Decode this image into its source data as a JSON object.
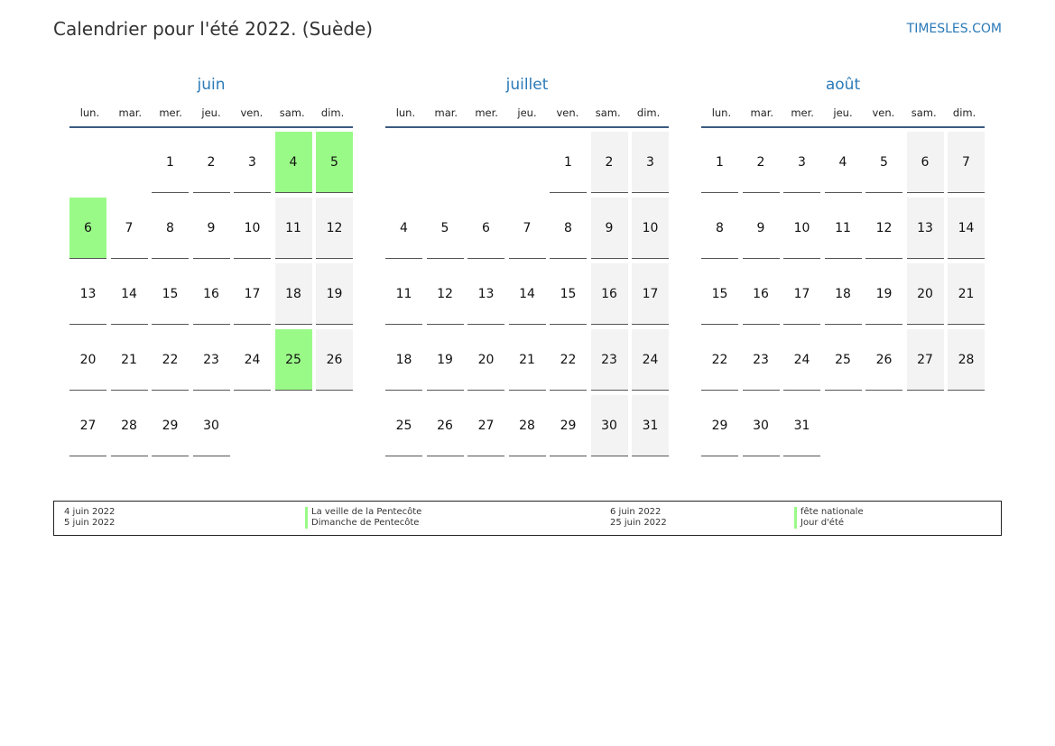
{
  "title": "Calendrier pour l'été 2022. (Suède)",
  "brand": "TIMESLES.COM",
  "weekdays": [
    "lun.",
    "mar.",
    "mer.",
    "jeu.",
    "ven.",
    "sam.",
    "dim."
  ],
  "colors": {
    "accent": "#2a7ab8",
    "holiday": "#9afa88",
    "weekend": "#f3f3f3"
  },
  "months": [
    {
      "name": "juin",
      "weeks": [
        [
          null,
          null,
          1,
          2,
          3,
          4,
          5
        ],
        [
          6,
          7,
          8,
          9,
          10,
          11,
          12
        ],
        [
          13,
          14,
          15,
          16,
          17,
          18,
          19
        ],
        [
          20,
          21,
          22,
          23,
          24,
          25,
          26
        ],
        [
          27,
          28,
          29,
          30,
          null,
          null,
          null
        ]
      ],
      "holidays": [
        4,
        5,
        6,
        25
      ]
    },
    {
      "name": "juillet",
      "weeks": [
        [
          null,
          null,
          null,
          null,
          1,
          2,
          3
        ],
        [
          4,
          5,
          6,
          7,
          8,
          9,
          10
        ],
        [
          11,
          12,
          13,
          14,
          15,
          16,
          17
        ],
        [
          18,
          19,
          20,
          21,
          22,
          23,
          24
        ],
        [
          25,
          26,
          27,
          28,
          29,
          30,
          31
        ]
      ],
      "holidays": []
    },
    {
      "name": "août",
      "weeks": [
        [
          1,
          2,
          3,
          4,
          5,
          6,
          7
        ],
        [
          8,
          9,
          10,
          11,
          12,
          13,
          14
        ],
        [
          15,
          16,
          17,
          18,
          19,
          20,
          21
        ],
        [
          22,
          23,
          24,
          25,
          26,
          27,
          28
        ],
        [
          29,
          30,
          31,
          null,
          null,
          null,
          null
        ]
      ],
      "holidays": []
    }
  ],
  "legend": {
    "col1": [
      "4 juin 2022",
      "5 juin 2022"
    ],
    "col2": [
      "La veille de la Pentecôte",
      "Dimanche de Pentecôte"
    ],
    "col3": [
      "6 juin 2022",
      "25 juin 2022"
    ],
    "col4": [
      "fête nationale",
      "Jour d'été"
    ]
  }
}
